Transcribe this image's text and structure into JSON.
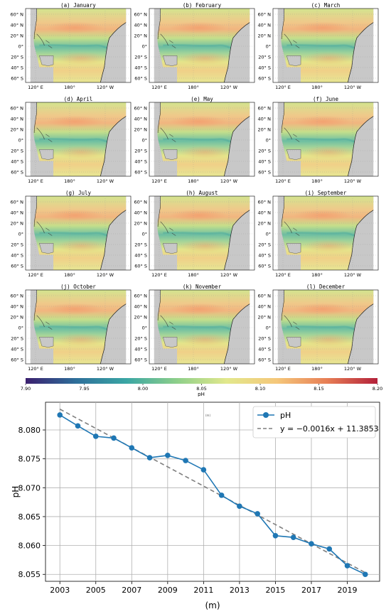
{
  "maps": {
    "panels": [
      {
        "label": "(a) January"
      },
      {
        "label": "(b) February"
      },
      {
        "label": "(c) March"
      },
      {
        "label": "(d) April"
      },
      {
        "label": "(e) May"
      },
      {
        "label": "(f) June"
      },
      {
        "label": "(g) July"
      },
      {
        "label": "(h) August"
      },
      {
        "label": "(i) September"
      },
      {
        "label": "(j) October"
      },
      {
        "label": "(k) November"
      },
      {
        "label": "(l) December"
      }
    ],
    "lat_ticks": [
      "60° N",
      "40° N",
      "20° N",
      "0°",
      "20° S",
      "40° S",
      "60° S"
    ],
    "lon_ticks": [
      "120° E",
      "180°",
      "120° W"
    ],
    "land_color": "#c8c8c8",
    "ocean_mid_color": "#e1e98a",
    "equator_color": "#5cb8a0",
    "north_warm_color": "#f2b37a",
    "colorbar": {
      "ticks": [
        "7.90",
        "7.95",
        "8.00",
        "8.05",
        "8.10",
        "8.15",
        "8.20"
      ],
      "label": "pH",
      "colors": [
        "#3b1f6e",
        "#2e6f9a",
        "#3aa6a4",
        "#8dcf8a",
        "#e2e88c",
        "#f5c77a",
        "#e77e55",
        "#b3203a"
      ]
    }
  },
  "chart_data": {
    "type": "line",
    "x": [
      2003,
      2004,
      2005,
      2006,
      2007,
      2008,
      2009,
      2010,
      2011,
      2012,
      2013,
      2014,
      2015,
      2016,
      2017,
      2018,
      2019,
      2020
    ],
    "series": [
      {
        "name": "pH",
        "values": [
          8.0826,
          8.0807,
          8.0789,
          8.0786,
          8.0769,
          8.0752,
          8.0756,
          8.0747,
          8.0731,
          8.0687,
          8.0668,
          8.0655,
          8.0617,
          8.0614,
          8.0603,
          8.0594,
          8.0565,
          8.055
        ],
        "color": "#1f77b4"
      },
      {
        "name": "y = −0.0016x + 11.3853",
        "fit": {
          "slope": -0.0016,
          "intercept": 11.3853
        },
        "color": "#7f7f7f",
        "style": "dashed"
      }
    ],
    "xlabel": "(m)",
    "ylabel": "pH",
    "xlim": [
      2002.2,
      2020.8
    ],
    "ylim": [
      8.0538,
      8.0848
    ],
    "xticks": [
      2003,
      2005,
      2007,
      2009,
      2011,
      2013,
      2015,
      2017,
      2019
    ],
    "xtick_labels": [
      "2003",
      "2005",
      "2007",
      "2009",
      "2011",
      "2013",
      "2015",
      "2017",
      "2019"
    ],
    "yticks": [
      8.055,
      8.06,
      8.065,
      8.07,
      8.075,
      8.08
    ],
    "ytick_labels": [
      "8.055",
      "8.060",
      "8.065",
      "8.070",
      "8.075",
      "8.080"
    ],
    "annotation": "(m)",
    "grid": true,
    "legend": "top-right"
  }
}
